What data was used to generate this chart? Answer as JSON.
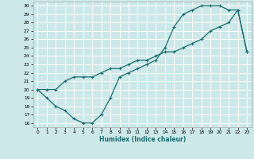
{
  "xlabel": "Humidex (Indice chaleur)",
  "bg_color": "#cce8e8",
  "grid_color": "#ffffff",
  "line_color": "#1a6e6e",
  "xlim": [
    -0.5,
    23.5
  ],
  "ylim": [
    15.5,
    30.5
  ],
  "xticks": [
    0,
    1,
    2,
    3,
    4,
    5,
    6,
    7,
    8,
    9,
    10,
    11,
    12,
    13,
    14,
    15,
    16,
    17,
    18,
    19,
    20,
    21,
    22,
    23
  ],
  "yticks": [
    16,
    17,
    18,
    19,
    20,
    21,
    22,
    23,
    24,
    25,
    26,
    27,
    28,
    29,
    30
  ],
  "line1_x": [
    0,
    1,
    2,
    3,
    4,
    5,
    6,
    7,
    8,
    9,
    10,
    11,
    12,
    13,
    14,
    15,
    16,
    17,
    18,
    19,
    20,
    21,
    22,
    23
  ],
  "line1_y": [
    20.0,
    19.0,
    18.0,
    17.5,
    16.5,
    16.0,
    16.0,
    17.0,
    19.0,
    21.5,
    22.0,
    22.5,
    23.0,
    23.5,
    25.0,
    27.5,
    29.0,
    29.5,
    30.0,
    30.0,
    30.0,
    29.5,
    29.5,
    24.5
  ],
  "line2_x": [
    0,
    1,
    2,
    3,
    4,
    5,
    6,
    7,
    8,
    9,
    10,
    11,
    12,
    13,
    14,
    15,
    16,
    17,
    18,
    19,
    20,
    21,
    22,
    23
  ],
  "line2_y": [
    20.0,
    20.0,
    20.0,
    21.0,
    21.5,
    21.5,
    21.5,
    22.0,
    22.5,
    22.5,
    23.0,
    23.5,
    23.5,
    24.0,
    24.5,
    24.5,
    25.0,
    25.5,
    26.0,
    27.0,
    27.5,
    28.0,
    29.5,
    24.5
  ]
}
